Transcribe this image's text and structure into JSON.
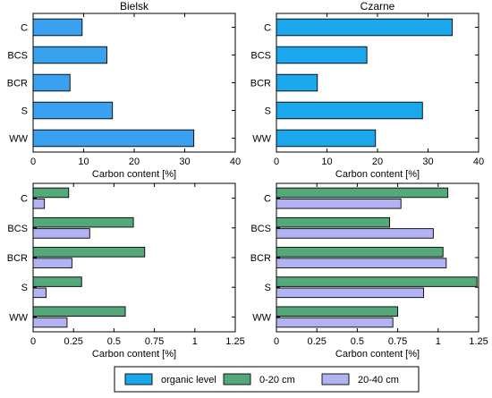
{
  "chart_data": [
    {
      "type": "bar",
      "orientation": "horizontal",
      "title": "Bielsk",
      "xlabel": "Carbon content [%]",
      "xlim": [
        0,
        40
      ],
      "xticks": [
        "0",
        "10",
        "20",
        "30",
        "40"
      ],
      "categories": [
        "C",
        "BCS",
        "BCR",
        "S",
        "WW"
      ],
      "series": [
        {
          "name": "organic level",
          "color": "#3aa0f0",
          "values": [
            9.7,
            14.6,
            7.3,
            15.7,
            31.8
          ]
        }
      ]
    },
    {
      "type": "bar",
      "orientation": "horizontal",
      "title": "Czarne",
      "xlabel": "Carbon content [%]",
      "xlim": [
        0,
        40
      ],
      "xticks": [
        "0",
        "10",
        "20",
        "30",
        "40"
      ],
      "categories": [
        "C",
        "BCS",
        "BCR",
        "S",
        "WW"
      ],
      "series": [
        {
          "name": "organic level",
          "color": "#1aa7ec",
          "values": [
            34.8,
            17.9,
            8.1,
            28.9,
            19.6
          ]
        }
      ]
    },
    {
      "type": "bar",
      "orientation": "horizontal",
      "title": "",
      "xlabel": "Carbon content [%]",
      "xlim": [
        0,
        1.25
      ],
      "xticks": [
        "0",
        "0.25",
        "0.5",
        "0.75",
        "1",
        "1.25"
      ],
      "categories": [
        "C",
        "BCS",
        "BCR",
        "S",
        "WW"
      ],
      "series": [
        {
          "name": "0-20 cm",
          "color": "#55a87a",
          "values": [
            0.22,
            0.62,
            0.69,
            0.3,
            0.57
          ]
        },
        {
          "name": "20-40 cm",
          "color": "#b3b2f2",
          "values": [
            0.07,
            0.35,
            0.24,
            0.08,
            0.21
          ]
        }
      ]
    },
    {
      "type": "bar",
      "orientation": "horizontal",
      "title": "",
      "xlabel": "Carbon content [%]",
      "xlim": [
        0,
        1.25
      ],
      "xticks": [
        "0",
        "0.25",
        "0.5",
        "0.75",
        "1",
        "1.25"
      ],
      "categories": [
        "C",
        "BCS",
        "BCR",
        "S",
        "WW"
      ],
      "series": [
        {
          "name": "0-20 cm",
          "color": "#55a87a",
          "values": [
            1.06,
            0.7,
            1.03,
            1.24,
            0.75
          ]
        },
        {
          "name": "20-40 cm",
          "color": "#b3b2f2",
          "values": [
            0.77,
            0.97,
            1.05,
            0.91,
            0.72
          ]
        }
      ]
    }
  ],
  "legend": {
    "placement": "bottom",
    "items": [
      {
        "label": "organic level",
        "color": "#1aa7ec"
      },
      {
        "label": "0-20 cm",
        "color": "#55a87a"
      },
      {
        "label": "20-40 cm",
        "color": "#b3b2f2"
      }
    ]
  }
}
